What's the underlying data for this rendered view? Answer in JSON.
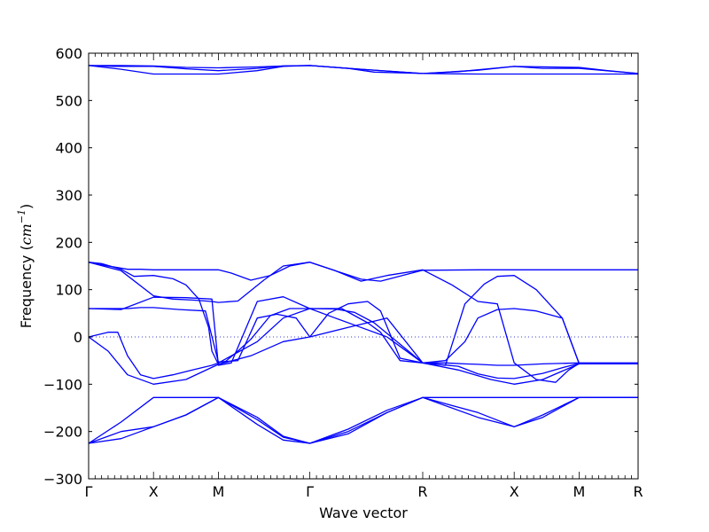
{
  "chart_data": {
    "type": "line",
    "title": "",
    "xlabel": "Wave vector",
    "ylabel_text": "Frequency (",
    "ylabel_unit": "cm",
    "ylabel_exp": "−1",
    "ylabel_close": ")",
    "ylim": [
      -300,
      600
    ],
    "yticks": [
      -300,
      -200,
      -100,
      0,
      100,
      200,
      300,
      400,
      500,
      600
    ],
    "xlim": [
      0,
      8.47
    ],
    "xticks": [
      {
        "label": "Γ",
        "x": 0
      },
      {
        "label": "X",
        "x": 1.0
      },
      {
        "label": "M",
        "x": 2.0
      },
      {
        "label": "Γ",
        "x": 3.41
      },
      {
        "label": "R",
        "x": 5.15
      },
      {
        "label": "X",
        "x": 6.56
      },
      {
        "label": "M",
        "x": 7.56
      },
      {
        "label": "R",
        "x": 8.47
      }
    ],
    "zero_line": true,
    "grid": false,
    "line_color": "#0000ff",
    "zero_line_color": "#3b3bd6",
    "series": [
      {
        "x": [
          0,
          0.5,
          1.0,
          1.5,
          2.0,
          2.6,
          3.0,
          3.41,
          4.0,
          4.4,
          5.15,
          6.0,
          6.56,
          7.1,
          7.56,
          8.0,
          8.47
        ],
        "values": [
          574,
          574,
          573,
          570,
          569,
          571,
          573,
          574,
          568,
          560,
          557,
          564,
          572,
          571,
          570,
          563,
          557
        ]
      },
      {
        "x": [
          0,
          0.4,
          1.0,
          1.5,
          2.0,
          2.6,
          3.0,
          3.41,
          4.2,
          5.15,
          5.7,
          6.56,
          7.0,
          7.56,
          8.47
        ],
        "values": [
          574,
          572,
          572,
          567,
          563,
          568,
          573,
          574,
          566,
          557,
          561,
          572,
          568,
          568,
          557
        ]
      },
      {
        "x": [
          0,
          0.5,
          1.0,
          1.5,
          2.0,
          2.6,
          3.0,
          3.41,
          4.2,
          5.15,
          6.0,
          6.56,
          7.56,
          8.47
        ],
        "values": [
          574,
          566,
          556,
          556,
          556,
          563,
          572,
          574,
          566,
          557,
          556,
          556,
          556,
          556
        ]
      },
      {
        "x": [
          0,
          0.2,
          0.5,
          0.7,
          1.0,
          1.3,
          1.5,
          1.7,
          1.85,
          1.9,
          2.0,
          2.1,
          2.3,
          2.5,
          2.8,
          3.1,
          3.41,
          3.8,
          4.1,
          4.4,
          5.15,
          5.7,
          6.0,
          6.3,
          6.56,
          7.0,
          7.3,
          7.56,
          8.0,
          8.47
        ],
        "values": [
          158,
          155,
          143,
          128,
          130,
          123,
          110,
          80,
          20,
          -30,
          -58,
          -53,
          -30,
          -5,
          45,
          60,
          60,
          59,
          52,
          30,
          -55,
          -62,
          -78,
          -87,
          -88,
          -77,
          -65,
          -56,
          -56,
          -56
        ]
      },
      {
        "x": [
          0,
          0.3,
          0.6,
          0.8,
          1.0,
          1.5,
          2.0,
          2.2,
          2.5,
          2.8,
          3.1,
          3.41,
          3.8,
          4.2,
          4.5,
          5.15,
          6.0,
          6.56,
          7.0,
          7.56,
          8.0,
          8.47
        ],
        "values": [
          158,
          150,
          143,
          143,
          142,
          142,
          142,
          135,
          120,
          130,
          150,
          158,
          140,
          122,
          118,
          141,
          142,
          142,
          142,
          142,
          142,
          142
        ]
      },
      {
        "x": [
          0,
          0.5,
          1.0,
          1.3,
          1.6,
          1.9,
          2.0,
          2.3,
          2.7,
          3.0,
          3.41,
          3.8,
          4.2,
          4.6,
          5.15,
          5.6,
          6.0,
          6.3,
          6.56,
          6.9,
          7.2,
          7.4,
          7.56,
          8.0,
          8.47
        ],
        "values": [
          158,
          140,
          87,
          80,
          78,
          75,
          73,
          76,
          120,
          150,
          158,
          140,
          118,
          130,
          142,
          110,
          75,
          70,
          -55,
          -90,
          -96,
          -70,
          -56,
          -56,
          -56
        ]
      },
      {
        "x": [
          0,
          0.5,
          1.0,
          1.5,
          1.9,
          2.0,
          2.2,
          2.6,
          3.0,
          3.41,
          3.8,
          4.2,
          4.6,
          5.15,
          5.5,
          5.8,
          6.1,
          6.3,
          6.56,
          6.9,
          7.3,
          7.56,
          8.0,
          8.47
        ],
        "values": [
          60,
          58,
          84,
          83,
          80,
          -60,
          -55,
          75,
          85,
          60,
          40,
          20,
          0,
          -55,
          -60,
          70,
          112,
          128,
          130,
          100,
          40,
          -56,
          -56,
          -56
        ]
      },
      {
        "x": [
          0,
          0.2,
          0.4,
          0.5,
          0.6,
          0.8,
          1.0,
          1.4,
          1.8,
          2.0,
          2.3,
          2.6,
          2.9,
          3.2,
          3.41,
          3.7,
          4.0,
          4.3,
          4.5,
          4.8,
          5.15,
          5.5,
          5.8,
          6.0,
          6.3,
          6.56,
          7.0,
          7.56,
          8.0,
          8.47
        ],
        "values": [
          60,
          60,
          60,
          60,
          60,
          62,
          62,
          58,
          55,
          -53,
          -50,
          40,
          48,
          40,
          0,
          50,
          70,
          75,
          55,
          -45,
          -55,
          -55,
          -57,
          -58,
          -60,
          -60,
          -57,
          -55,
          -55,
          -55
        ]
      },
      {
        "x": [
          0,
          0.3,
          0.45,
          0.6,
          0.8,
          1.0,
          1.3,
          1.6,
          1.9,
          2.0,
          2.2,
          2.6,
          3.0,
          3.41,
          3.9,
          4.3,
          4.5,
          4.8,
          5.15,
          5.5,
          5.8,
          6.0,
          6.3,
          6.56,
          6.9,
          7.3,
          7.56,
          8.0,
          8.47
        ],
        "values": [
          0,
          10,
          10,
          -40,
          -80,
          -88,
          -80,
          -70,
          -60,
          -55,
          -40,
          -10,
          40,
          60,
          60,
          30,
          10,
          -50,
          -55,
          -50,
          -10,
          40,
          58,
          60,
          55,
          40,
          -56,
          -56,
          -56
        ]
      },
      {
        "x": [
          0,
          0.3,
          0.6,
          1.0,
          1.5,
          2.0,
          2.5,
          3.0,
          3.41,
          4.0,
          4.6,
          5.15,
          5.7,
          6.2,
          6.56,
          7.0,
          7.56,
          8.47
        ],
        "values": [
          0,
          -30,
          -80,
          -100,
          -90,
          -58,
          -40,
          -10,
          0,
          20,
          40,
          -55,
          -70,
          -90,
          -100,
          -90,
          -57,
          -57
        ]
      },
      {
        "x": [
          0,
          0.5,
          1.0,
          1.5,
          2.0,
          2.6,
          3.0,
          3.41,
          4.0,
          4.6,
          5.15,
          6.0,
          6.56,
          7.0,
          7.56,
          8.0,
          8.47
        ],
        "values": [
          -225,
          -200,
          -190,
          -165,
          -128,
          -170,
          -210,
          -225,
          -200,
          -160,
          -128,
          -160,
          -190,
          -170,
          -128,
          -128,
          -128
        ]
      },
      {
        "x": [
          0,
          0.5,
          1.0,
          1.5,
          2.0,
          2.6,
          3.0,
          3.41,
          4.0,
          4.6,
          5.15,
          6.0,
          6.56,
          7.0,
          7.56,
          8.47
        ],
        "values": [
          -225,
          -180,
          -128,
          -128,
          -128,
          -185,
          -218,
          -225,
          -195,
          -155,
          -128,
          -128,
          -128,
          -128,
          -128,
          -128
        ]
      },
      {
        "x": [
          0,
          0.5,
          1.0,
          1.5,
          2.0,
          2.6,
          3.0,
          3.41,
          4.0,
          4.6,
          5.15,
          6.0,
          6.56,
          7.0,
          7.56,
          8.47
        ],
        "values": [
          -225,
          -215,
          -190,
          -165,
          -128,
          -175,
          -212,
          -225,
          -205,
          -160,
          -128,
          -170,
          -190,
          -165,
          -128,
          -128
        ]
      }
    ]
  }
}
